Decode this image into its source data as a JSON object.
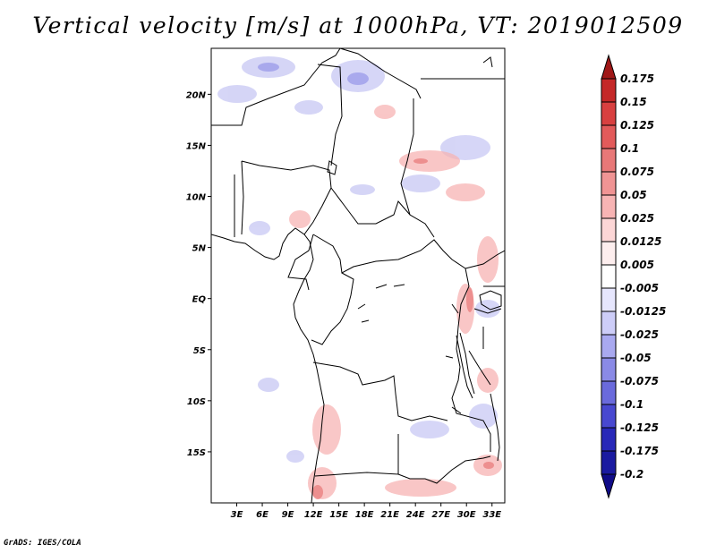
{
  "title": "Vertical velocity [m/s] at 1000hPa, VT: 2019012509",
  "credit": "GrADS: IGES/COLA",
  "map": {
    "lat_labels": [
      "20N",
      "15N",
      "10N",
      "5N",
      "EQ",
      "5S",
      "10S",
      "15S"
    ],
    "lat_values": [
      20,
      15,
      10,
      5,
      0,
      -5,
      -10,
      -15
    ],
    "lon_labels": [
      "3E",
      "6E",
      "9E",
      "12E",
      "15E",
      "18E",
      "21E",
      "24E",
      "27E",
      "30E",
      "33E"
    ],
    "lon_values": [
      3,
      6,
      9,
      12,
      15,
      18,
      21,
      24,
      27,
      30,
      33
    ],
    "lon_range": [
      0,
      34.5
    ],
    "lat_range": [
      -20,
      24.5
    ]
  },
  "colorbar": {
    "levels": [
      "0.175",
      "0.15",
      "0.125",
      "0.1",
      "0.075",
      "0.05",
      "0.025",
      "0.0125",
      "0.005",
      "-0.005",
      "-0.0125",
      "-0.025",
      "-0.05",
      "-0.075",
      "-0.1",
      "-0.125",
      "-0.175",
      "-0.2"
    ],
    "colors": [
      "#a01818",
      "#c42828",
      "#d84040",
      "#e25a5a",
      "#e87878",
      "#f09494",
      "#f7b4b4",
      "#fcd6d6",
      "#fdeeee",
      "#ffffff",
      "#e6e6fd",
      "#cdcdf8",
      "#a9a9f0",
      "#8a8ae6",
      "#6a6adc",
      "#4848d0",
      "#2828b8",
      "#1a1aa0",
      "#100c88"
    ]
  }
}
